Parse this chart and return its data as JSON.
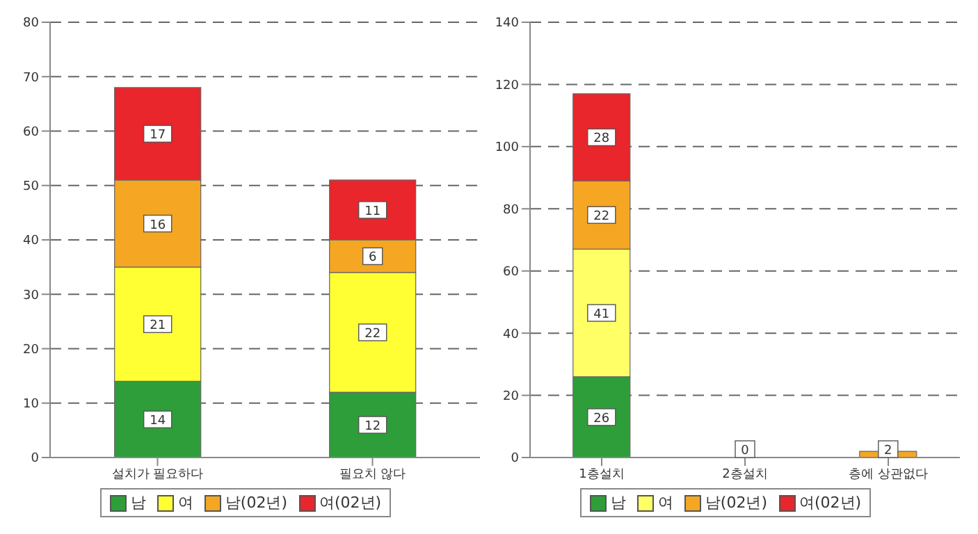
{
  "chart_data": [
    {
      "type": "bar",
      "stacked": true,
      "categories": [
        "설치가 필요하다",
        "필요치 않다"
      ],
      "series": [
        {
          "name": "남",
          "color": "#2e9e3a",
          "values": [
            14,
            12
          ]
        },
        {
          "name": "여",
          "color": "#ffff33",
          "values": [
            21,
            22
          ]
        },
        {
          "name": "남(02년)",
          "color": "#f5a623",
          "values": [
            16,
            6
          ]
        },
        {
          "name": "여(02년)",
          "color": "#e8262b",
          "values": [
            17,
            11
          ]
        }
      ],
      "ylim": [
        0,
        80
      ],
      "yticks": [
        0,
        10,
        20,
        30,
        40,
        50,
        60,
        70,
        80
      ],
      "grid": "y",
      "legend": "bottom",
      "data_labels": true
    },
    {
      "type": "bar",
      "stacked": true,
      "categories": [
        "1층설치",
        "2층설치",
        "층에 상관없다"
      ],
      "series": [
        {
          "name": "남",
          "color": "#2e9e3a",
          "values": [
            26,
            0,
            null
          ]
        },
        {
          "name": "여",
          "color": "#ffff66",
          "values": [
            41,
            null,
            null
          ]
        },
        {
          "name": "남(02년)",
          "color": "#f5a623",
          "values": [
            22,
            null,
            2
          ]
        },
        {
          "name": "여(02년)",
          "color": "#e8262b",
          "values": [
            28,
            null,
            null
          ]
        }
      ],
      "ylim": [
        0,
        140
      ],
      "yticks": [
        0,
        20,
        40,
        60,
        80,
        100,
        120,
        140
      ],
      "grid": "y",
      "legend": "bottom",
      "data_labels": true
    }
  ]
}
